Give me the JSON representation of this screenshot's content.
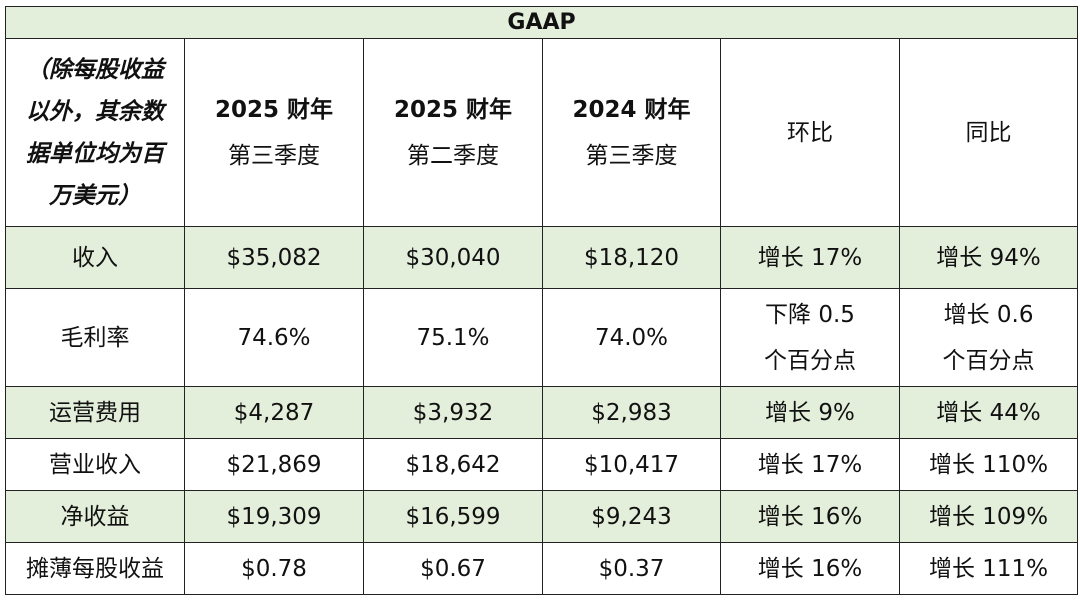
{
  "title": "GAAP",
  "header": {
    "note_lines": [
      "（除每股收益",
      "以外，其余数",
      "据单位均为百",
      "万美元）"
    ],
    "columns": [
      {
        "year": "2025 财年",
        "quarter": "第三季度"
      },
      {
        "year": "2025 财年",
        "quarter": "第二季度"
      },
      {
        "year": "2024 财年",
        "quarter": "第三季度"
      },
      {
        "label": "环比"
      },
      {
        "label": "同比"
      }
    ]
  },
  "rows": [
    {
      "label": "收入",
      "values": [
        "$35,082",
        "$30,040",
        "$18,120",
        "增长 17%",
        "增长 94%"
      ]
    },
    {
      "label": "毛利率",
      "values": [
        "74.6%",
        "75.1%",
        "74.0%"
      ],
      "qoq_lines": [
        "下降 0.5",
        "个百分点"
      ],
      "yoy_lines": [
        "增长 0.6",
        "个百分点"
      ]
    },
    {
      "label": "运营费用",
      "values": [
        "$4,287",
        "$3,932",
        "$2,983",
        "增长 9%",
        "增长 44%"
      ]
    },
    {
      "label": "营业收入",
      "values": [
        "$21,869",
        "$18,642",
        "$10,417",
        "增长 17%",
        "增长 110%"
      ]
    },
    {
      "label": "净收益",
      "values": [
        "$19,309",
        "$16,599",
        "$9,243",
        "增长 16%",
        "增长 109%"
      ]
    },
    {
      "label": "摊薄每股收益",
      "values": [
        "$0.78",
        "$0.67",
        "$0.37",
        "增长 16%",
        "增长 111%"
      ]
    }
  ],
  "colors": {
    "highlight_row": "#e3eedb",
    "border": "#222222"
  }
}
